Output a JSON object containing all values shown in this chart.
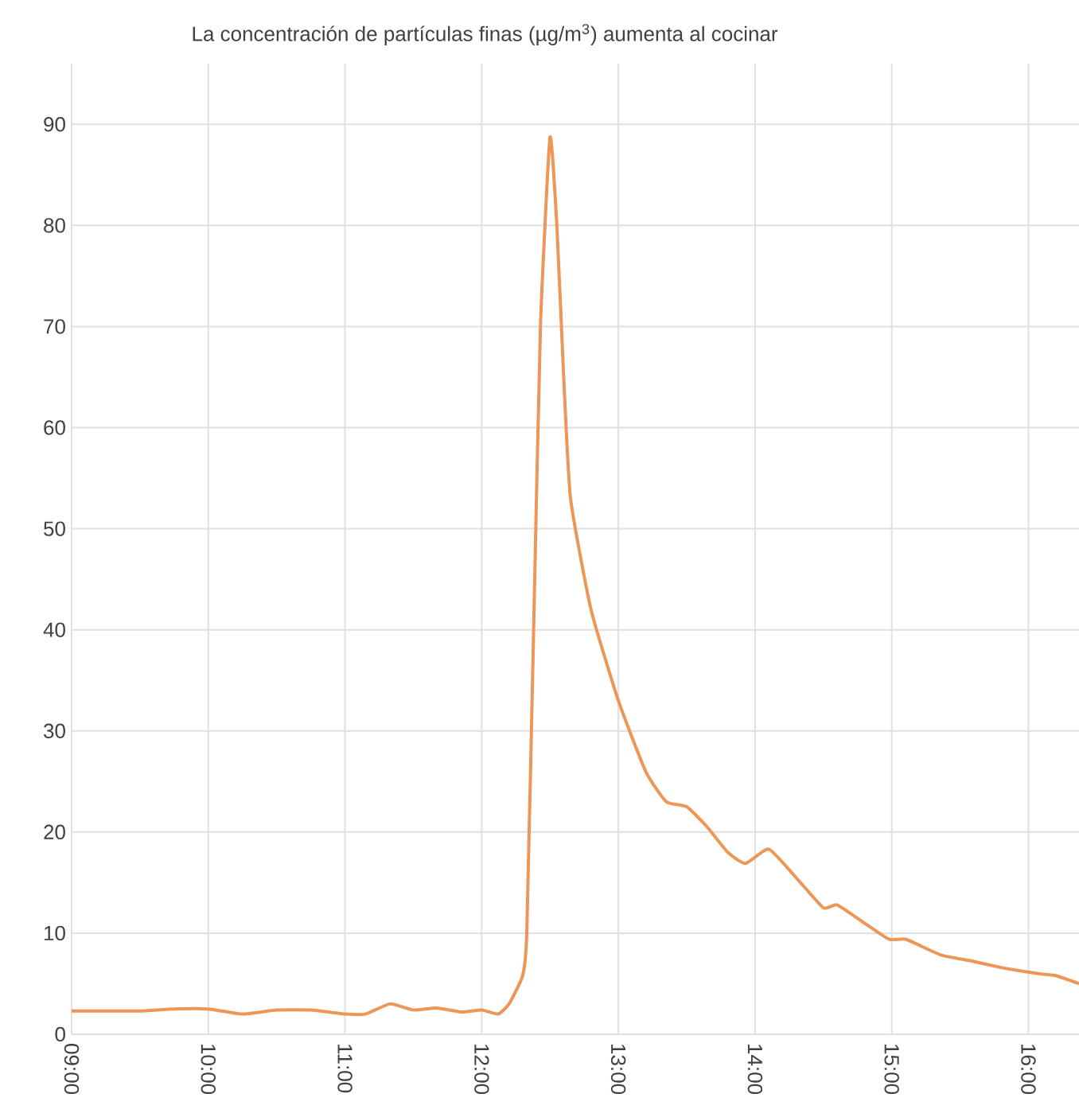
{
  "chart_data": {
    "type": "line",
    "title": "La concentración de partículas finas (µg/m$^{3}$) aumenta al cocinar",
    "x": [
      9.0,
      9.25,
      9.5,
      9.75,
      10.0,
      10.25,
      10.5,
      10.75,
      11.0,
      11.15,
      11.33,
      11.5,
      11.67,
      11.85,
      12.0,
      12.12,
      12.2,
      12.3,
      12.33,
      12.38,
      12.43,
      12.5,
      12.55,
      12.6,
      12.65,
      12.8,
      13.0,
      13.2,
      13.35,
      13.5,
      13.65,
      13.8,
      13.93,
      14.1,
      14.3,
      14.5,
      14.6,
      14.8,
      14.98,
      15.1,
      15.25,
      15.37,
      15.6,
      15.8,
      16.07,
      16.2,
      16.37
    ],
    "series": [
      {
        "color": "#ec9657",
        "values": [
          2.3,
          2.3,
          2.3,
          2.5,
          2.5,
          2.0,
          2.4,
          2.4,
          2.0,
          2.0,
          3.0,
          2.4,
          2.6,
          2.2,
          2.4,
          2.0,
          3.0,
          5.8,
          10,
          40,
          70,
          88.7,
          80,
          65,
          53,
          42,
          33,
          26,
          23,
          22.5,
          20.5,
          18,
          16.9,
          18.3,
          15.5,
          12.5,
          12.8,
          11,
          9.4,
          9.4,
          8.5,
          7.8,
          7.2,
          6.6,
          6.0,
          5.8,
          5.0
        ]
      }
    ],
    "xlim": [
      9.0,
      16.37
    ],
    "ylim": [
      0,
      96
    ],
    "xticks": [
      {
        "value": 9,
        "label": "09:00"
      },
      {
        "value": 10,
        "label": "10:00"
      },
      {
        "value": 11,
        "label": "11:00"
      },
      {
        "value": 12,
        "label": "12:00"
      },
      {
        "value": 13,
        "label": "13:00"
      },
      {
        "value": 14,
        "label": "14:00"
      },
      {
        "value": 15,
        "label": "15:00"
      },
      {
        "value": 16,
        "label": "16:00"
      }
    ],
    "yticks": [
      0,
      10,
      20,
      30,
      40,
      50,
      60,
      70,
      80,
      90
    ],
    "grid": true
  }
}
